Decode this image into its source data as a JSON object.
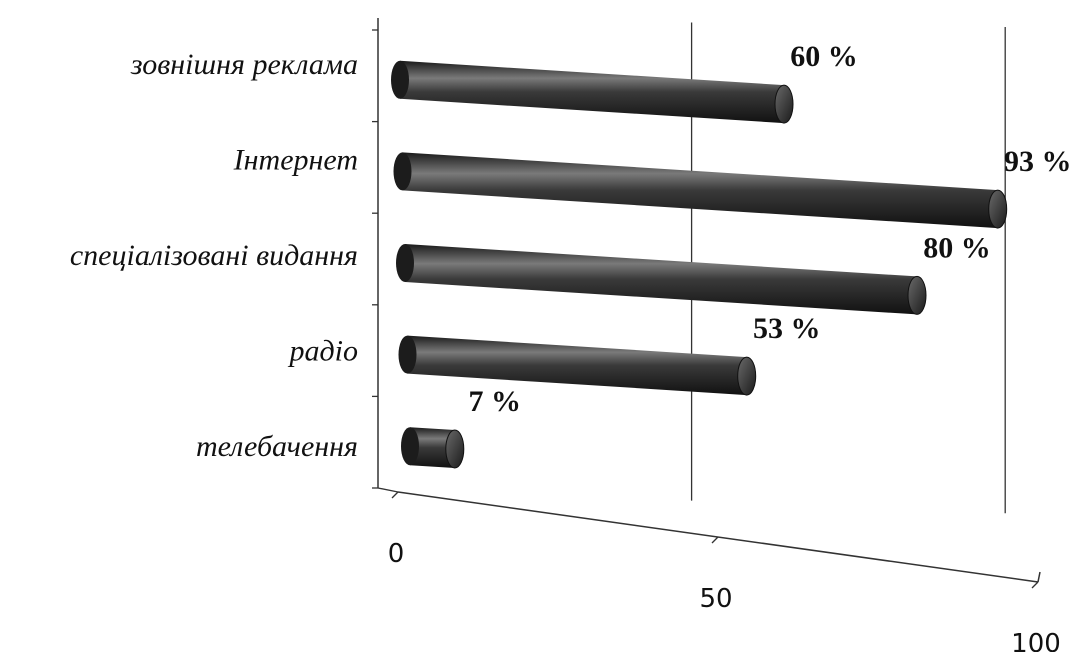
{
  "chart_data": {
    "type": "bar",
    "orientation": "horizontal",
    "style": "3d-cylinder",
    "categories": [
      "зовнішня реклама",
      "Інтернет",
      "спеціалізовані видання",
      "радіо",
      "телебачення"
    ],
    "values": [
      60,
      93,
      80,
      53,
      7
    ],
    "value_labels": [
      "60 %",
      "93 %",
      "80 %",
      "53 %",
      "7 %"
    ],
    "x_ticks": [
      "0",
      "50",
      "100"
    ],
    "xlim": [
      0,
      100
    ],
    "grid": true,
    "legend": "none",
    "colors": {
      "bar": "#2a2a2a",
      "bar_highlight": "#8a8a8a",
      "axis": "#333333",
      "text": "#111111"
    }
  }
}
